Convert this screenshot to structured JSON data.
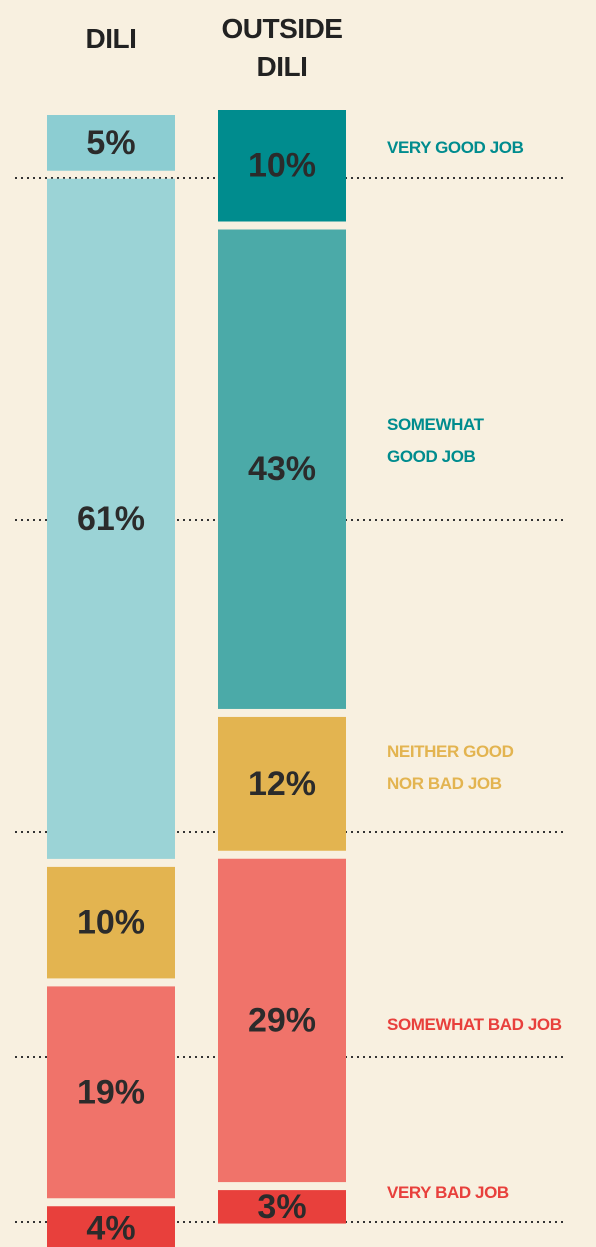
{
  "chart_data": {
    "type": "bar",
    "stacked": true,
    "categories": [
      "DILI",
      "OUTSIDE DILI"
    ],
    "series": [
      {
        "name": "VERY GOOD JOB",
        "colors": [
          "#8ccdd2",
          "#008c8e"
        ],
        "legend_color": "#008c8e",
        "values": [
          5,
          10
        ],
        "value_labels": [
          "5%",
          "10%"
        ]
      },
      {
        "name": "SOMEWHAT GOOD JOB",
        "colors": [
          "#9bd3d6",
          "#4baaa8"
        ],
        "legend_color": "#008c8e",
        "values": [
          61,
          43
        ],
        "value_labels": [
          "61%",
          "43%"
        ]
      },
      {
        "name": "NEITHER GOOD NOR BAD JOB",
        "colors": [
          "#e3b450",
          "#e3b450"
        ],
        "legend_color": "#e3b450",
        "values": [
          10,
          12
        ],
        "value_labels": [
          "10%",
          "12%"
        ]
      },
      {
        "name": "SOMEWHAT BAD JOB",
        "colors": [
          "#f0736a",
          "#f0736a"
        ],
        "legend_color": "#e8403c",
        "values": [
          19,
          29
        ],
        "value_labels": [
          "19%",
          "29%"
        ]
      },
      {
        "name": "VERY BAD JOB",
        "colors": [
          "#e8403c",
          "#e8403c"
        ],
        "legend_color": "#e8403c",
        "values": [
          4,
          3
        ],
        "value_labels": [
          "4%",
          "3%"
        ]
      }
    ]
  }
}
